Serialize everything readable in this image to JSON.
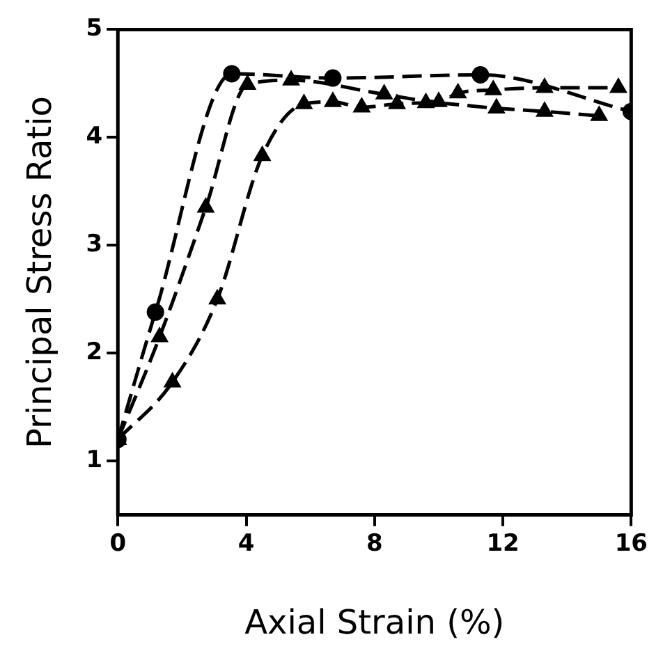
{
  "chart_data": {
    "type": "line",
    "xlabel": "Axial Strain (%)",
    "ylabel": "Principal Stress Ratio",
    "xlim": [
      0,
      16
    ],
    "xticks": [
      0,
      4,
      8,
      12,
      16
    ],
    "ylim": [
      0.5,
      5
    ],
    "yticks": [
      1,
      2,
      3,
      4,
      5
    ],
    "grid": false,
    "legend": false,
    "line_style": "dashed",
    "series": [
      {
        "color": "#000000",
        "marker": "circle",
        "x": [
          0,
          1.17,
          3.55,
          6.7,
          11.3,
          16
        ],
        "values": [
          1.2,
          2.38,
          4.59,
          4.55,
          4.58,
          4.24
        ]
      },
      {
        "color": "#000000",
        "marker": "triangle",
        "x": [
          0,
          1.3,
          2.74,
          4.04,
          5.4,
          6.7,
          8.3,
          10.0,
          10.6,
          11.7,
          13.3,
          15.6
        ],
        "values": [
          1.2,
          2.15,
          3.35,
          4.49,
          4.53,
          null,
          4.4,
          4.33,
          4.41,
          4.44,
          4.46,
          4.46
        ]
      },
      {
        "color": "#000000",
        "marker": "triangle",
        "x": [
          0,
          1.7,
          3.1,
          4.5,
          5.8,
          6.7,
          7.6,
          8.7,
          9.6,
          10.1,
          11.8,
          13.3,
          15.0
        ],
        "values": [
          1.2,
          1.73,
          2.5,
          3.83,
          4.31,
          4.33,
          4.28,
          4.31,
          4.32,
          null,
          4.27,
          4.24,
          4.2
        ]
      }
    ]
  }
}
